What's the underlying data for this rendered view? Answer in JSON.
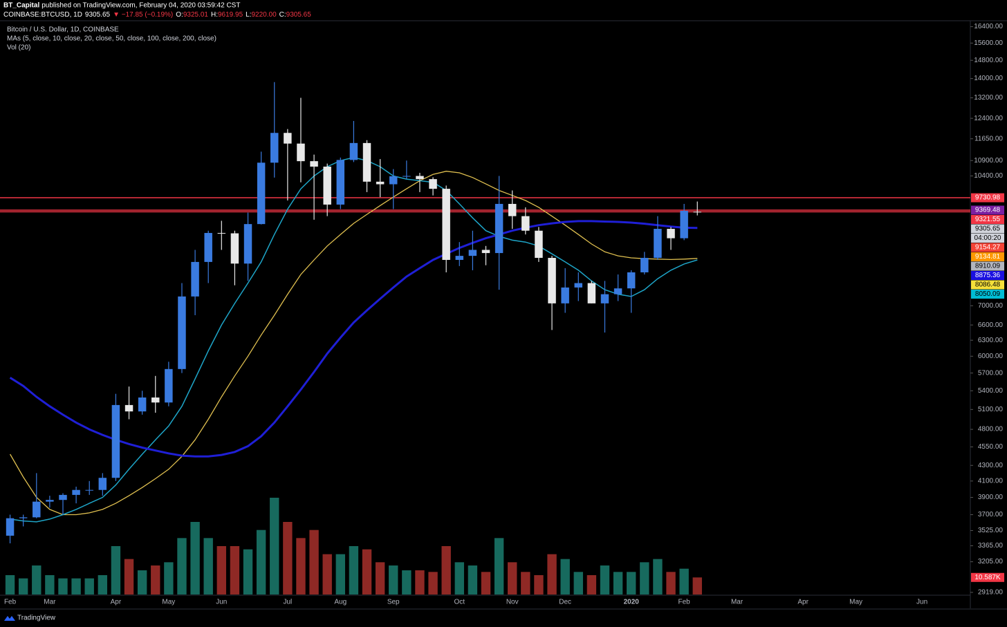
{
  "header": {
    "user": "BT_Capital",
    "published": "published on TradingView.com, February 04, 2020 03:59:42 CST",
    "quote": [
      {
        "text": "COINBASE:BTCUSD, 1D",
        "color": "#ffffff"
      },
      {
        "text": "9305.65",
        "color": "#ffffff"
      },
      {
        "text": "▼ −17.85 (−0.19%)",
        "color": "#f23645"
      },
      {
        "text": "O:",
        "color": "#ffffff"
      },
      {
        "text": "9325.01",
        "color": "#f23645"
      },
      {
        "text": "H:",
        "color": "#ffffff"
      },
      {
        "text": "9619.95",
        "color": "#f23645"
      },
      {
        "text": "L:",
        "color": "#ffffff"
      },
      {
        "text": "9220.00",
        "color": "#f23645"
      },
      {
        "text": "C:",
        "color": "#ffffff"
      },
      {
        "text": "9305.65",
        "color": "#f23645"
      }
    ]
  },
  "legend": [
    "Bitcoin / U.S. Dollar, 1D, COINBASE",
    "MAs (5, close, 10, close, 20, close, 50, close, 100, close, 200, close)",
    "Vol (20)"
  ],
  "footer": {
    "brand": "TradingView"
  },
  "chart_data": {
    "type": "candlestick",
    "log_scale": true,
    "categories": [
      "Feb",
      null,
      null,
      "Mar",
      null,
      null,
      null,
      null,
      "Apr",
      null,
      null,
      null,
      "May",
      null,
      null,
      null,
      "Jun",
      null,
      null,
      null,
      null,
      "Jul",
      null,
      null,
      null,
      "Aug",
      null,
      null,
      null,
      "Sep",
      null,
      null,
      null,
      null,
      "Oct",
      null,
      null,
      null,
      "Nov",
      null,
      null,
      null,
      "Dec",
      null,
      null,
      null,
      null,
      "2020",
      null,
      null,
      null,
      "Feb",
      null,
      null,
      null,
      "Mar",
      null,
      null,
      null,
      null,
      "Apr",
      null,
      null,
      null,
      "May",
      null,
      null,
      null,
      null,
      "Jun",
      null,
      null,
      null
    ],
    "candles": {
      "up_color": "#3a7be0",
      "down_color": "#e8e8e8",
      "open": [
        3470,
        3660,
        3670,
        3850,
        3870,
        3930,
        3990,
        3990,
        4140,
        5170,
        5070,
        5290,
        5210,
        5770,
        7200,
        8000,
        8740,
        8730,
        7960,
        8980,
        10830,
        11860,
        11480,
        10880,
        10700,
        9530,
        10920,
        11500,
        10220,
        10140,
        10390,
        10400,
        10300,
        10000,
        8050,
        8150,
        8300,
        8220,
        9550,
        9200,
        8800,
        8100,
        7050,
        7400,
        7500,
        7050,
        7250,
        7380,
        7750,
        8100,
        8850,
        8600,
        9325.01,
        null,
        null,
        null,
        null,
        null,
        null,
        null,
        null,
        null,
        null,
        null,
        null,
        null,
        null,
        null,
        null,
        null,
        null,
        null,
        null
      ],
      "high": [
        3700,
        3700,
        4200,
        3920,
        3950,
        4030,
        4100,
        4200,
        5350,
        5470,
        5400,
        5650,
        5900,
        7500,
        8300,
        8800,
        9070,
        8800,
        9300,
        11200,
        13850,
        12000,
        13200,
        11100,
        10800,
        11000,
        12300,
        11600,
        10950,
        10620,
        10900,
        10500,
        10360,
        10100,
        8500,
        8800,
        8400,
        10400,
        9950,
        9450,
        8900,
        8150,
        7850,
        7750,
        7550,
        7550,
        7700,
        7800,
        8250,
        9200,
        8900,
        9550,
        9619.95,
        null,
        null,
        null,
        null,
        null,
        null,
        null,
        null,
        null,
        null,
        null,
        null,
        null,
        null,
        null,
        null,
        null,
        null,
        null,
        null
      ],
      "low": [
        3390,
        3570,
        3660,
        3780,
        3700,
        3830,
        3930,
        3920,
        4100,
        4950,
        5020,
        5050,
        5150,
        5700,
        6800,
        7500,
        8300,
        7450,
        7550,
        8970,
        10350,
        9650,
        10200,
        9100,
        9200,
        9400,
        10850,
        9900,
        9750,
        9400,
        10300,
        9900,
        9800,
        7750,
        7900,
        7800,
        7920,
        7350,
        8850,
        8700,
        8000,
        6500,
        6850,
        7100,
        7050,
        6450,
        7100,
        6850,
        7700,
        8050,
        8300,
        8550,
        9220,
        null,
        null,
        null,
        null,
        null,
        null,
        null,
        null,
        null,
        null,
        null,
        null,
        null,
        null,
        null,
        null,
        null,
        null,
        null,
        null
      ],
      "close": [
        3660,
        3670,
        3850,
        3870,
        3930,
        3990,
        3990,
        4140,
        5170,
        5070,
        5290,
        5210,
        5770,
        7200,
        8000,
        8740,
        8730,
        7960,
        8980,
        10830,
        11860,
        11480,
        10880,
        10700,
        9530,
        10920,
        11500,
        10220,
        10140,
        10390,
        10400,
        10300,
        10000,
        8050,
        8150,
        8300,
        8220,
        9550,
        9200,
        8800,
        8100,
        7050,
        7400,
        7500,
        7050,
        7250,
        7380,
        7750,
        8100,
        8850,
        8600,
        9350,
        9305.65,
        null,
        null,
        null,
        null,
        null,
        null,
        null,
        null,
        null,
        null,
        null,
        null,
        null,
        null,
        null,
        null,
        null,
        null,
        null,
        null
      ]
    },
    "ma_series": [
      {
        "color": "#e0c050",
        "width": 1.3,
        "values": [
          4450,
          4150,
          3900,
          3760,
          3700,
          3700,
          3720,
          3760,
          3830,
          3920,
          4020,
          4130,
          4250,
          4420,
          4650,
          4950,
          5300,
          5650,
          6000,
          6400,
          6800,
          7250,
          7700,
          8050,
          8400,
          8700,
          9000,
          9250,
          9500,
          9750,
          10000,
          10250,
          10450,
          10550,
          10500,
          10350,
          10150,
          9950,
          9800,
          9650,
          9450,
          9200,
          8950,
          8700,
          8450,
          8250,
          8150,
          8100,
          8080,
          8070,
          8060,
          8070,
          8086.48,
          null,
          null,
          null,
          null,
          null,
          null,
          null,
          null,
          null,
          null,
          null,
          null,
          null,
          null,
          null,
          null,
          null,
          null,
          null,
          null
        ]
      },
      {
        "color": "#1ea5c8",
        "width": 1.5,
        "values": [
          3650,
          3630,
          3620,
          3650,
          3700,
          3760,
          3830,
          3900,
          4050,
          4250,
          4450,
          4650,
          4850,
          5150,
          5600,
          6100,
          6600,
          7050,
          7500,
          8000,
          8700,
          9400,
          10000,
          10400,
          10700,
          10900,
          11000,
          10900,
          10700,
          10400,
          10300,
          10250,
          10200,
          9950,
          9550,
          9150,
          8800,
          8650,
          8550,
          8500,
          8400,
          8200,
          8000,
          7800,
          7550,
          7350,
          7250,
          7200,
          7350,
          7600,
          7800,
          7950,
          8050.09,
          null,
          null,
          null,
          null,
          null,
          null,
          null,
          null,
          null,
          null,
          null,
          null,
          null,
          null,
          null,
          null,
          null,
          null,
          null,
          null
        ]
      },
      {
        "color": "#1f1fd6",
        "width": 3,
        "values": [
          5620,
          5480,
          5300,
          5150,
          5020,
          4900,
          4800,
          4720,
          4650,
          4590,
          4540,
          4500,
          4460,
          4430,
          4420,
          4420,
          4440,
          4480,
          4560,
          4700,
          4900,
          5150,
          5420,
          5720,
          6050,
          6350,
          6650,
          6900,
          7150,
          7400,
          7650,
          7850,
          8050,
          8200,
          8350,
          8480,
          8600,
          8700,
          8800,
          8880,
          8950,
          9000,
          9040,
          9060,
          9060,
          9050,
          9040,
          9020,
          8990,
          8950,
          8910,
          8880,
          8875.36,
          null,
          null,
          null,
          null,
          null,
          null,
          null,
          null,
          null,
          null,
          null,
          null,
          null,
          null,
          null,
          null,
          null,
          null,
          null,
          null
        ]
      }
    ],
    "volume": {
      "up_color": "#1b7d6e",
      "down_color": "#a8302b",
      "ylim": [
        0,
        90
      ],
      "values": [
        12,
        10,
        18,
        12,
        10,
        10,
        10,
        12,
        30,
        22,
        15,
        18,
        20,
        35,
        45,
        35,
        30,
        30,
        28,
        40,
        60,
        45,
        35,
        40,
        25,
        25,
        30,
        28,
        20,
        18,
        15,
        15,
        14,
        30,
        20,
        18,
        14,
        35,
        20,
        14,
        12,
        25,
        22,
        14,
        12,
        18,
        14,
        14,
        20,
        22,
        14,
        16,
        10.587,
        null,
        null,
        null,
        null,
        null,
        null,
        null,
        null,
        null,
        null,
        null,
        null,
        null,
        null,
        null,
        null,
        null,
        null,
        null,
        null
      ],
      "last_label": {
        "value": 10.587,
        "label": "10.587K",
        "color": "#f23645"
      }
    },
    "ylim": [
      2900,
      16700
    ],
    "yticks": [
      {
        "value": 16400,
        "label": "16400.00"
      },
      {
        "value": 15600,
        "label": "15600.00"
      },
      {
        "value": 14800,
        "label": "14800.00"
      },
      {
        "value": 14000,
        "label": "14000.00"
      },
      {
        "value": 13200,
        "label": "13200.00"
      },
      {
        "value": 12400,
        "label": "12400.00"
      },
      {
        "value": 11650,
        "label": "11650.00"
      },
      {
        "value": 10900,
        "label": "10900.00"
      },
      {
        "value": 10400,
        "label": "10400.00"
      },
      {
        "value": 7000,
        "label": "7000.00"
      },
      {
        "value": 6600,
        "label": "6600.00"
      },
      {
        "value": 6300,
        "label": "6300.00"
      },
      {
        "value": 6000,
        "label": "6000.00"
      },
      {
        "value": 5700,
        "label": "5700.00"
      },
      {
        "value": 5400,
        "label": "5400.00"
      },
      {
        "value": 5100,
        "label": "5100.00"
      },
      {
        "value": 4800,
        "label": "4800.00"
      },
      {
        "value": 4550,
        "label": "4550.00"
      },
      {
        "value": 4300,
        "label": "4300.00"
      },
      {
        "value": 4100,
        "label": "4100.00"
      },
      {
        "value": 3900,
        "label": "3900.00"
      },
      {
        "value": 3700,
        "label": "3700.00"
      },
      {
        "value": 3525,
        "label": "3525.00"
      },
      {
        "value": 3365,
        "label": "3365.00"
      },
      {
        "value": 3205,
        "label": "3205.00"
      },
      {
        "value": 2919,
        "label": "2919.00"
      }
    ],
    "levels": [
      {
        "value": 9730.98,
        "color": "#f23645"
      },
      {
        "value": 9369.48,
        "color": "#f23645"
      },
      {
        "value": 9321.55,
        "color": "#f23645"
      }
    ],
    "price_labels": [
      {
        "value": 9730.98,
        "color": "#f23645",
        "text_color": "#ffffff"
      },
      {
        "value": 9369.48,
        "color": "#7b1fa2",
        "text_color": "#ffffff"
      },
      {
        "value": 9321.55,
        "color": "#f23645",
        "text_color": "#ffffff"
      },
      {
        "value": 9305.65,
        "color": "#d1d4dc",
        "text_color": "#000000"
      },
      {
        "label": "04:00:20",
        "color": "#d1d4dc",
        "text_color": "#000000"
      },
      {
        "value": 9154.27,
        "color": "#f44336",
        "text_color": "#ffffff"
      },
      {
        "value": 9134.81,
        "color": "#ff9800",
        "text_color": "#ffffff"
      },
      {
        "value": 8910.09,
        "color": "#b2b5be",
        "text_color": "#000000"
      },
      {
        "value": 8875.36,
        "color": "#1a10e0",
        "text_color": "#ffffff"
      },
      {
        "value": 8086.48,
        "color": "#f5e03a",
        "text_color": "#000000"
      },
      {
        "value": 8050.09,
        "color": "#00bcd4",
        "text_color": "#000000"
      }
    ]
  }
}
